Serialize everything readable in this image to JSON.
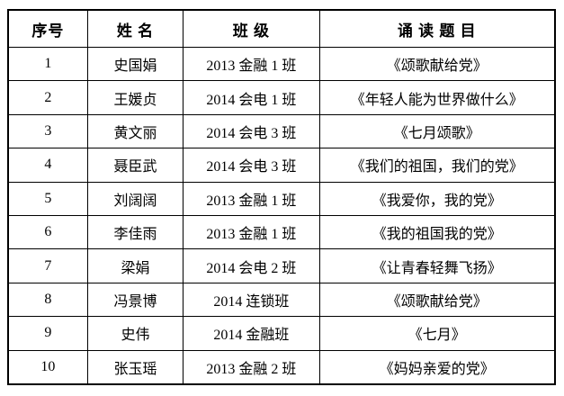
{
  "table": {
    "headers": [
      "序号",
      "姓 名",
      "班 级",
      "诵 读 题 目"
    ],
    "rows": [
      {
        "no": "1",
        "name": "史国娟",
        "class": "2013 金融 1 班",
        "title": "《颂歌献给党》"
      },
      {
        "no": "2",
        "name": "王媛贞",
        "class": "2014 会电 1 班",
        "title": "《年轻人能为世界做什么》"
      },
      {
        "no": "3",
        "name": "黄文丽",
        "class": "2014 会电 3 班",
        "title": "《七月颂歌》"
      },
      {
        "no": "4",
        "name": "聂臣武",
        "class": "2014 会电 3 班",
        "title": "《我们的祖国，我们的党》"
      },
      {
        "no": "5",
        "name": "刘阔阔",
        "class": "2013 金融 1 班",
        "title": "《我爱你，我的党》"
      },
      {
        "no": "6",
        "name": "李佳雨",
        "class": "2013 金融 1 班",
        "title": "《我的祖国我的党》"
      },
      {
        "no": "7",
        "name": "梁娟",
        "class": "2014 会电 2 班",
        "title": "《让青春轻舞飞扬》"
      },
      {
        "no": "8",
        "name": "冯景博",
        "class": "2014 连锁班",
        "title": "《颂歌献给党》"
      },
      {
        "no": "9",
        "name": "史伟",
        "class": "2014 金融班",
        "title": "《七月》"
      },
      {
        "no": "10",
        "name": "张玉瑶",
        "class": "2013 金融 2 班",
        "title": "《妈妈亲爱的党》"
      }
    ]
  },
  "colors": {
    "border": "#000000",
    "text": "#000000",
    "background": "#ffffff"
  }
}
